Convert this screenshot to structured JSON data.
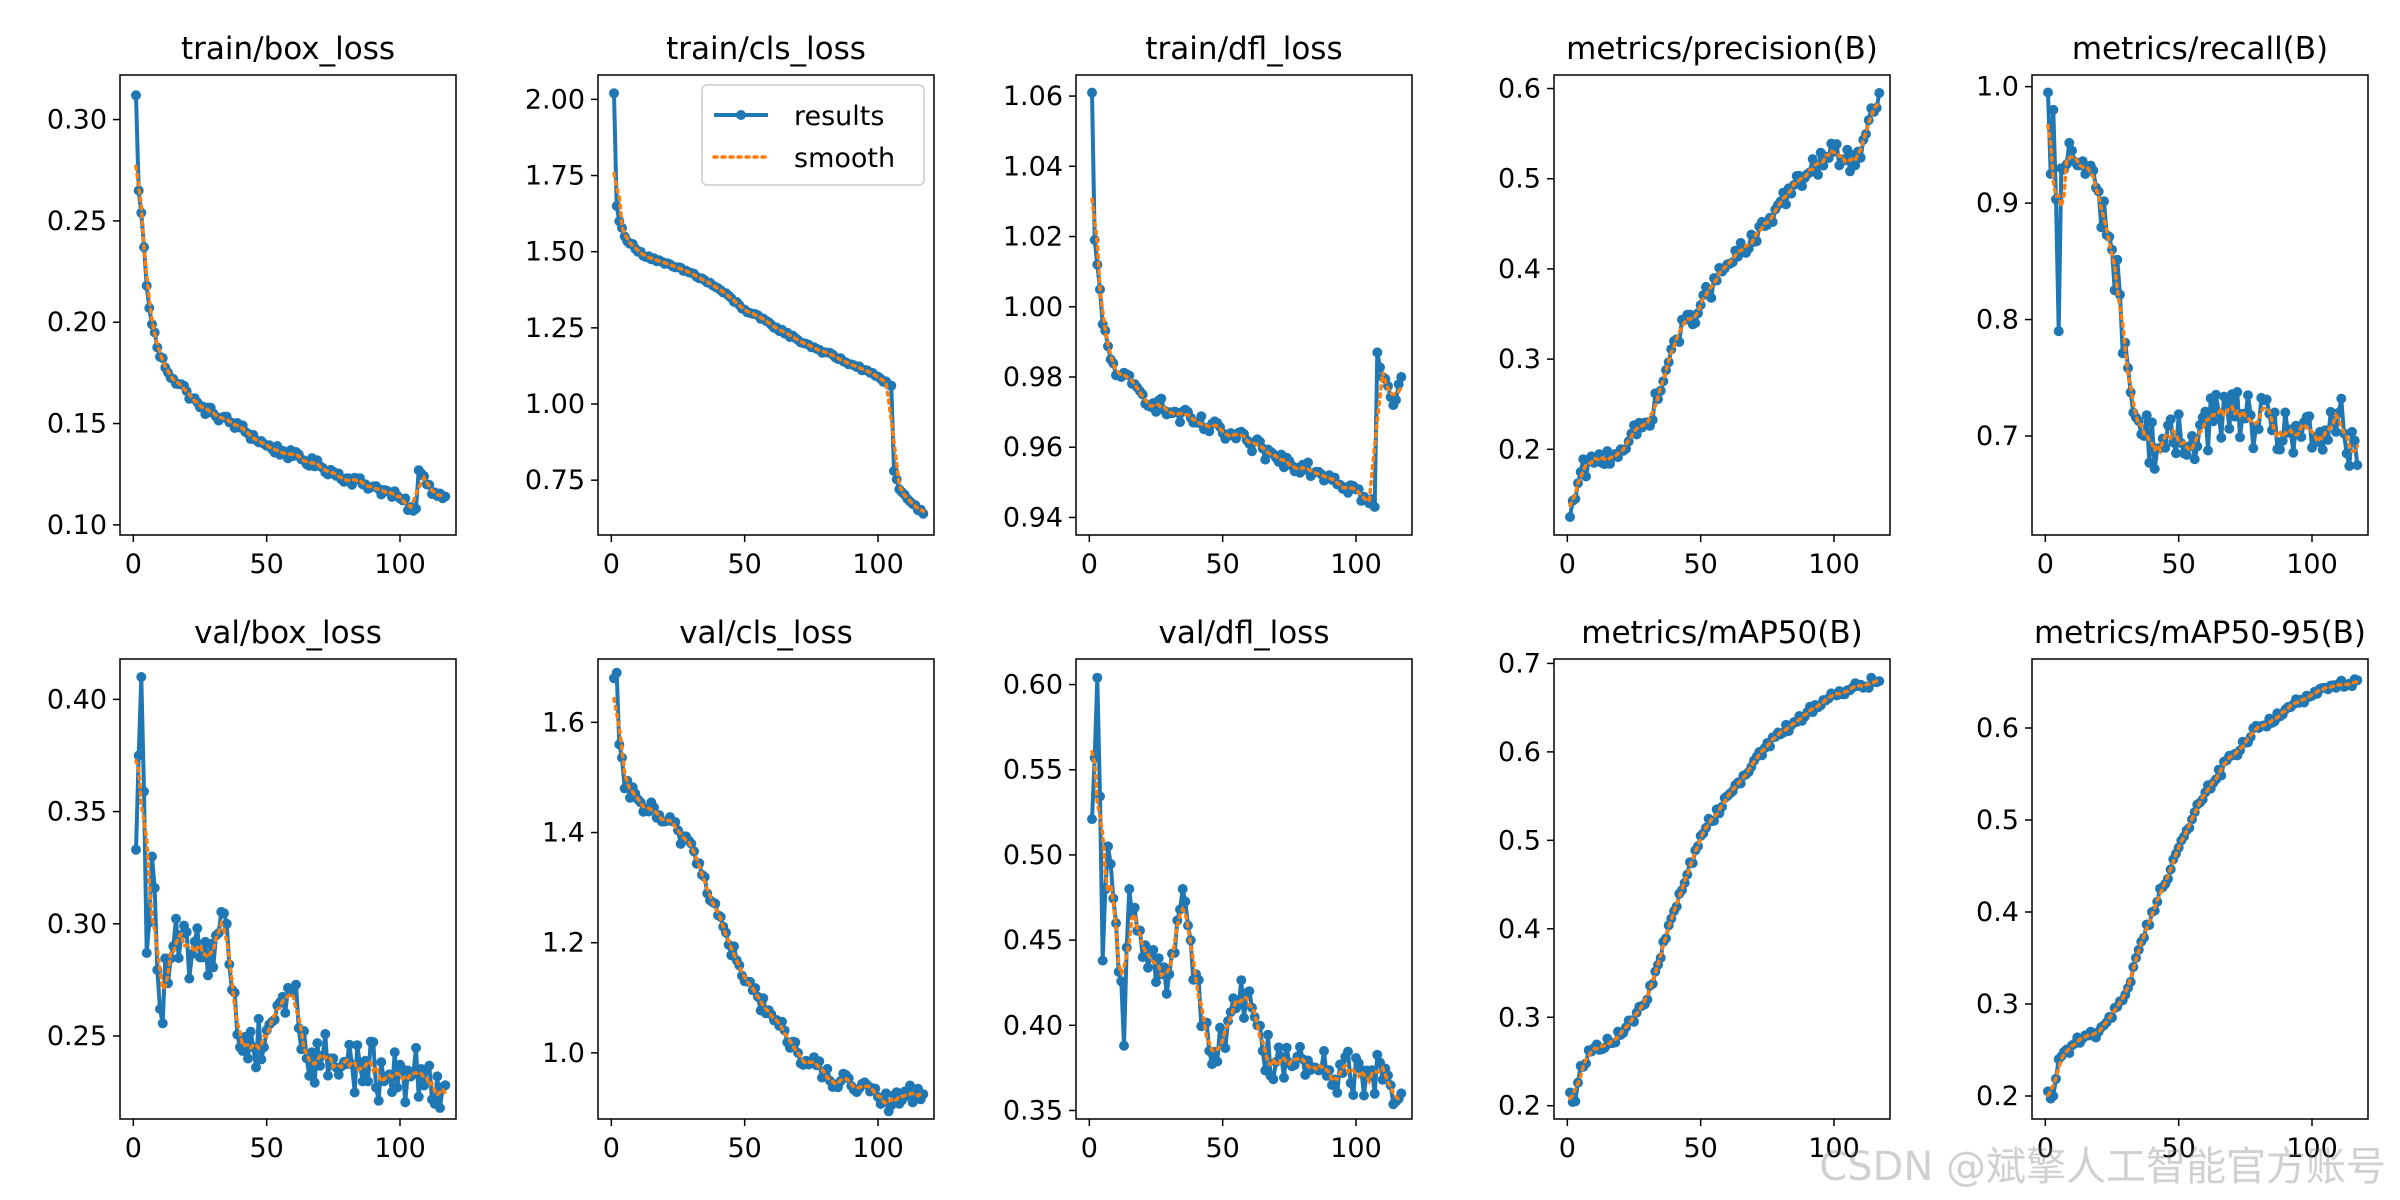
{
  "watermark": "CSDN @斌擎人工智能官方账号",
  "legend": {
    "results": "results",
    "smooth": "smooth"
  },
  "colors": {
    "results": "#1f77b4",
    "smooth": "#ff7f0e"
  },
  "chart_data": [
    {
      "type": "line",
      "title": "train/box_loss",
      "xlim": [
        -5,
        121
      ],
      "ylim": [
        0.095,
        0.322
      ],
      "xticks": [
        0,
        50,
        100
      ],
      "yticks": [
        0.1,
        0.15,
        0.2,
        0.25,
        0.3
      ],
      "ytick_labels": [
        "0.10",
        "0.15",
        "0.20",
        "0.25",
        "0.30"
      ],
      "n": 117,
      "anchors": [
        [
          1,
          0.312
        ],
        [
          2,
          0.265
        ],
        [
          3,
          0.254
        ],
        [
          5,
          0.218
        ],
        [
          7,
          0.199
        ],
        [
          10,
          0.183
        ],
        [
          15,
          0.172
        ],
        [
          20,
          0.166
        ],
        [
          25,
          0.158
        ],
        [
          30,
          0.155
        ],
        [
          40,
          0.148
        ],
        [
          50,
          0.139
        ],
        [
          60,
          0.134
        ],
        [
          70,
          0.129
        ],
        [
          80,
          0.123
        ],
        [
          90,
          0.119
        ],
        [
          100,
          0.113
        ],
        [
          105,
          0.107
        ],
        [
          106,
          0.108
        ],
        [
          107,
          0.127
        ],
        [
          110,
          0.12
        ],
        [
          113,
          0.116
        ],
        [
          117,
          0.114
        ]
      ],
      "noise": 0.0025,
      "smooth_window": 5
    },
    {
      "type": "line",
      "title": "train/cls_loss",
      "xlim": [
        -5,
        121
      ],
      "ylim": [
        0.57,
        2.08
      ],
      "xticks": [
        0,
        50,
        100
      ],
      "yticks": [
        0.75,
        1.0,
        1.25,
        1.5,
        1.75,
        2.0
      ],
      "ytick_labels": [
        "0.75",
        "1.00",
        "1.25",
        "1.50",
        "1.75",
        "2.00"
      ],
      "n": 117,
      "legend": true,
      "anchors": [
        [
          1,
          2.02
        ],
        [
          2,
          1.65
        ],
        [
          3,
          1.6
        ],
        [
          5,
          1.55
        ],
        [
          10,
          1.5
        ],
        [
          20,
          1.46
        ],
        [
          30,
          1.43
        ],
        [
          40,
          1.38
        ],
        [
          50,
          1.31
        ],
        [
          60,
          1.26
        ],
        [
          70,
          1.21
        ],
        [
          80,
          1.17
        ],
        [
          90,
          1.13
        ],
        [
          100,
          1.09
        ],
        [
          105,
          1.06
        ],
        [
          106,
          0.78
        ],
        [
          108,
          0.72
        ],
        [
          112,
          0.68
        ],
        [
          117,
          0.64
        ]
      ],
      "noise": 0.006,
      "smooth_window": 5
    },
    {
      "type": "line",
      "title": "train/dfl_loss",
      "xlim": [
        -5,
        121
      ],
      "ylim": [
        0.935,
        1.066
      ],
      "xticks": [
        0,
        50,
        100
      ],
      "yticks": [
        0.94,
        0.96,
        0.98,
        1.0,
        1.02,
        1.04,
        1.06
      ],
      "ytick_labels": [
        "0.94",
        "0.96",
        "0.98",
        "1.00",
        "1.02",
        "1.04",
        "1.06"
      ],
      "n": 117,
      "anchors": [
        [
          1,
          1.061
        ],
        [
          2,
          1.019
        ],
        [
          3,
          1.012
        ],
        [
          5,
          0.995
        ],
        [
          8,
          0.985
        ],
        [
          12,
          0.98
        ],
        [
          20,
          0.975
        ],
        [
          30,
          0.97
        ],
        [
          40,
          0.967
        ],
        [
          50,
          0.964
        ],
        [
          60,
          0.961
        ],
        [
          70,
          0.957
        ],
        [
          80,
          0.955
        ],
        [
          90,
          0.952
        ],
        [
          100,
          0.948
        ],
        [
          105,
          0.944
        ],
        [
          107,
          0.943
        ],
        [
          108,
          0.987
        ],
        [
          110,
          0.98
        ],
        [
          114,
          0.972
        ],
        [
          117,
          0.98
        ]
      ],
      "noise": 0.0025,
      "smooth_window": 5
    },
    {
      "type": "line",
      "title": "metrics/precision(B)",
      "xlim": [
        -5,
        121
      ],
      "ylim": [
        0.105,
        0.615
      ],
      "xticks": [
        0,
        50,
        100
      ],
      "yticks": [
        0.2,
        0.3,
        0.4,
        0.5,
        0.6
      ],
      "ytick_labels": [
        "0.2",
        "0.3",
        "0.4",
        "0.5",
        "0.6"
      ],
      "n": 117,
      "anchors": [
        [
          1,
          0.125
        ],
        [
          3,
          0.145
        ],
        [
          5,
          0.175
        ],
        [
          10,
          0.185
        ],
        [
          20,
          0.2
        ],
        [
          30,
          0.23
        ],
        [
          35,
          0.265
        ],
        [
          40,
          0.32
        ],
        [
          50,
          0.36
        ],
        [
          60,
          0.405
        ],
        [
          70,
          0.43
        ],
        [
          80,
          0.475
        ],
        [
          90,
          0.505
        ],
        [
          100,
          0.53
        ],
        [
          108,
          0.515
        ],
        [
          113,
          0.565
        ],
        [
          117,
          0.595
        ]
      ],
      "noise": 0.012,
      "smooth_window": 5
    },
    {
      "type": "line",
      "title": "metrics/recall(B)",
      "xlim": [
        -5,
        121
      ],
      "ylim": [
        0.615,
        1.01
      ],
      "xticks": [
        0,
        50,
        100
      ],
      "yticks": [
        0.7,
        0.8,
        0.9,
        1.0
      ],
      "ytick_labels": [
        "0.7",
        "0.8",
        "0.9",
        "1.0"
      ],
      "n": 117,
      "anchors": [
        [
          1,
          0.995
        ],
        [
          2,
          0.925
        ],
        [
          3,
          0.98
        ],
        [
          5,
          0.79
        ],
        [
          6,
          0.93
        ],
        [
          10,
          0.945
        ],
        [
          15,
          0.925
        ],
        [
          20,
          0.91
        ],
        [
          25,
          0.86
        ],
        [
          30,
          0.78
        ],
        [
          33,
          0.72
        ],
        [
          37,
          0.7
        ],
        [
          45,
          0.69
        ],
        [
          55,
          0.7
        ],
        [
          65,
          0.72
        ],
        [
          75,
          0.715
        ],
        [
          85,
          0.705
        ],
        [
          95,
          0.705
        ],
        [
          100,
          0.69
        ],
        [
          105,
          0.705
        ],
        [
          110,
          0.72
        ],
        [
          113,
          0.685
        ],
        [
          117,
          0.675
        ]
      ],
      "noise": 0.025,
      "smooth_window": 5
    },
    {
      "type": "line",
      "title": "val/box_loss",
      "xlim": [
        -5,
        121
      ],
      "ylim": [
        0.213,
        0.418
      ],
      "xticks": [
        0,
        50,
        100
      ],
      "yticks": [
        0.25,
        0.3,
        0.35,
        0.4
      ],
      "ytick_labels": [
        "0.25",
        "0.30",
        "0.35",
        "0.40"
      ],
      "n": 117,
      "anchors": [
        [
          1,
          0.333
        ],
        [
          2,
          0.375
        ],
        [
          3,
          0.41
        ],
        [
          5,
          0.287
        ],
        [
          7,
          0.33
        ],
        [
          10,
          0.262
        ],
        [
          15,
          0.29
        ],
        [
          25,
          0.285
        ],
        [
          35,
          0.3
        ],
        [
          40,
          0.245
        ],
        [
          45,
          0.245
        ],
        [
          55,
          0.265
        ],
        [
          60,
          0.27
        ],
        [
          65,
          0.24
        ],
        [
          75,
          0.24
        ],
        [
          85,
          0.237
        ],
        [
          95,
          0.232
        ],
        [
          105,
          0.233
        ],
        [
          110,
          0.235
        ],
        [
          117,
          0.228
        ]
      ],
      "noise": 0.013,
      "smooth_window": 5
    },
    {
      "type": "line",
      "title": "val/cls_loss",
      "xlim": [
        -5,
        121
      ],
      "ylim": [
        0.88,
        1.715
      ],
      "xticks": [
        0,
        50,
        100
      ],
      "yticks": [
        1.0,
        1.2,
        1.4,
        1.6
      ],
      "ytick_labels": [
        "1.0",
        "1.2",
        "1.4",
        "1.6"
      ],
      "n": 117,
      "anchors": [
        [
          1,
          1.68
        ],
        [
          2,
          1.69
        ],
        [
          3,
          1.56
        ],
        [
          5,
          1.48
        ],
        [
          10,
          1.46
        ],
        [
          20,
          1.42
        ],
        [
          30,
          1.38
        ],
        [
          40,
          1.25
        ],
        [
          50,
          1.13
        ],
        [
          60,
          1.07
        ],
        [
          70,
          1.0
        ],
        [
          80,
          0.96
        ],
        [
          90,
          0.94
        ],
        [
          100,
          0.92
        ],
        [
          105,
          0.905
        ],
        [
          110,
          0.93
        ],
        [
          117,
          0.925
        ]
      ],
      "noise": 0.018,
      "smooth_window": 5
    },
    {
      "type": "line",
      "title": "val/dfl_loss",
      "xlim": [
        -5,
        121
      ],
      "ylim": [
        0.345,
        0.615
      ],
      "xticks": [
        0,
        50,
        100
      ],
      "yticks": [
        0.35,
        0.4,
        0.45,
        0.5,
        0.55,
        0.6
      ],
      "ytick_labels": [
        "0.35",
        "0.40",
        "0.45",
        "0.50",
        "0.55",
        "0.60"
      ],
      "n": 117,
      "anchors": [
        [
          1,
          0.521
        ],
        [
          2,
          0.557
        ],
        [
          3,
          0.604
        ],
        [
          5,
          0.438
        ],
        [
          7,
          0.505
        ],
        [
          10,
          0.46
        ],
        [
          13,
          0.388
        ],
        [
          15,
          0.48
        ],
        [
          20,
          0.44
        ],
        [
          30,
          0.43
        ],
        [
          35,
          0.48
        ],
        [
          40,
          0.43
        ],
        [
          45,
          0.385
        ],
        [
          50,
          0.39
        ],
        [
          55,
          0.41
        ],
        [
          60,
          0.42
        ],
        [
          65,
          0.385
        ],
        [
          75,
          0.378
        ],
        [
          85,
          0.375
        ],
        [
          95,
          0.372
        ],
        [
          105,
          0.37
        ],
        [
          110,
          0.368
        ],
        [
          117,
          0.36
        ]
      ],
      "noise": 0.014,
      "smooth_window": 5
    },
    {
      "type": "line",
      "title": "metrics/mAP50(B)",
      "xlim": [
        -5,
        121
      ],
      "ylim": [
        0.185,
        0.705
      ],
      "xticks": [
        0,
        50,
        100
      ],
      "yticks": [
        0.2,
        0.3,
        0.4,
        0.5,
        0.6,
        0.7
      ],
      "ytick_labels": [
        "0.2",
        "0.3",
        "0.4",
        "0.5",
        "0.6",
        "0.7"
      ],
      "n": 117,
      "anchors": [
        [
          1,
          0.215
        ],
        [
          3,
          0.205
        ],
        [
          5,
          0.245
        ],
        [
          10,
          0.265
        ],
        [
          20,
          0.28
        ],
        [
          30,
          0.32
        ],
        [
          40,
          0.42
        ],
        [
          50,
          0.505
        ],
        [
          60,
          0.55
        ],
        [
          70,
          0.59
        ],
        [
          80,
          0.62
        ],
        [
          90,
          0.645
        ],
        [
          100,
          0.665
        ],
        [
          110,
          0.676
        ],
        [
          117,
          0.68
        ]
      ],
      "noise": 0.006,
      "smooth_window": 5
    },
    {
      "type": "line",
      "title": "metrics/mAP50-95(B)",
      "xlim": [
        -5,
        121
      ],
      "ylim": [
        0.175,
        0.675
      ],
      "xticks": [
        0,
        50,
        100
      ],
      "yticks": [
        0.2,
        0.3,
        0.4,
        0.5,
        0.6
      ],
      "ytick_labels": [
        "0.2",
        "0.3",
        "0.4",
        "0.5",
        "0.6"
      ],
      "n": 117,
      "anchors": [
        [
          1,
          0.205
        ],
        [
          3,
          0.2
        ],
        [
          5,
          0.24
        ],
        [
          10,
          0.255
        ],
        [
          20,
          0.27
        ],
        [
          30,
          0.31
        ],
        [
          40,
          0.4
        ],
        [
          50,
          0.47
        ],
        [
          60,
          0.53
        ],
        [
          70,
          0.57
        ],
        [
          80,
          0.6
        ],
        [
          90,
          0.62
        ],
        [
          100,
          0.635
        ],
        [
          110,
          0.648
        ],
        [
          117,
          0.652
        ]
      ],
      "noise": 0.006,
      "smooth_window": 5
    }
  ]
}
